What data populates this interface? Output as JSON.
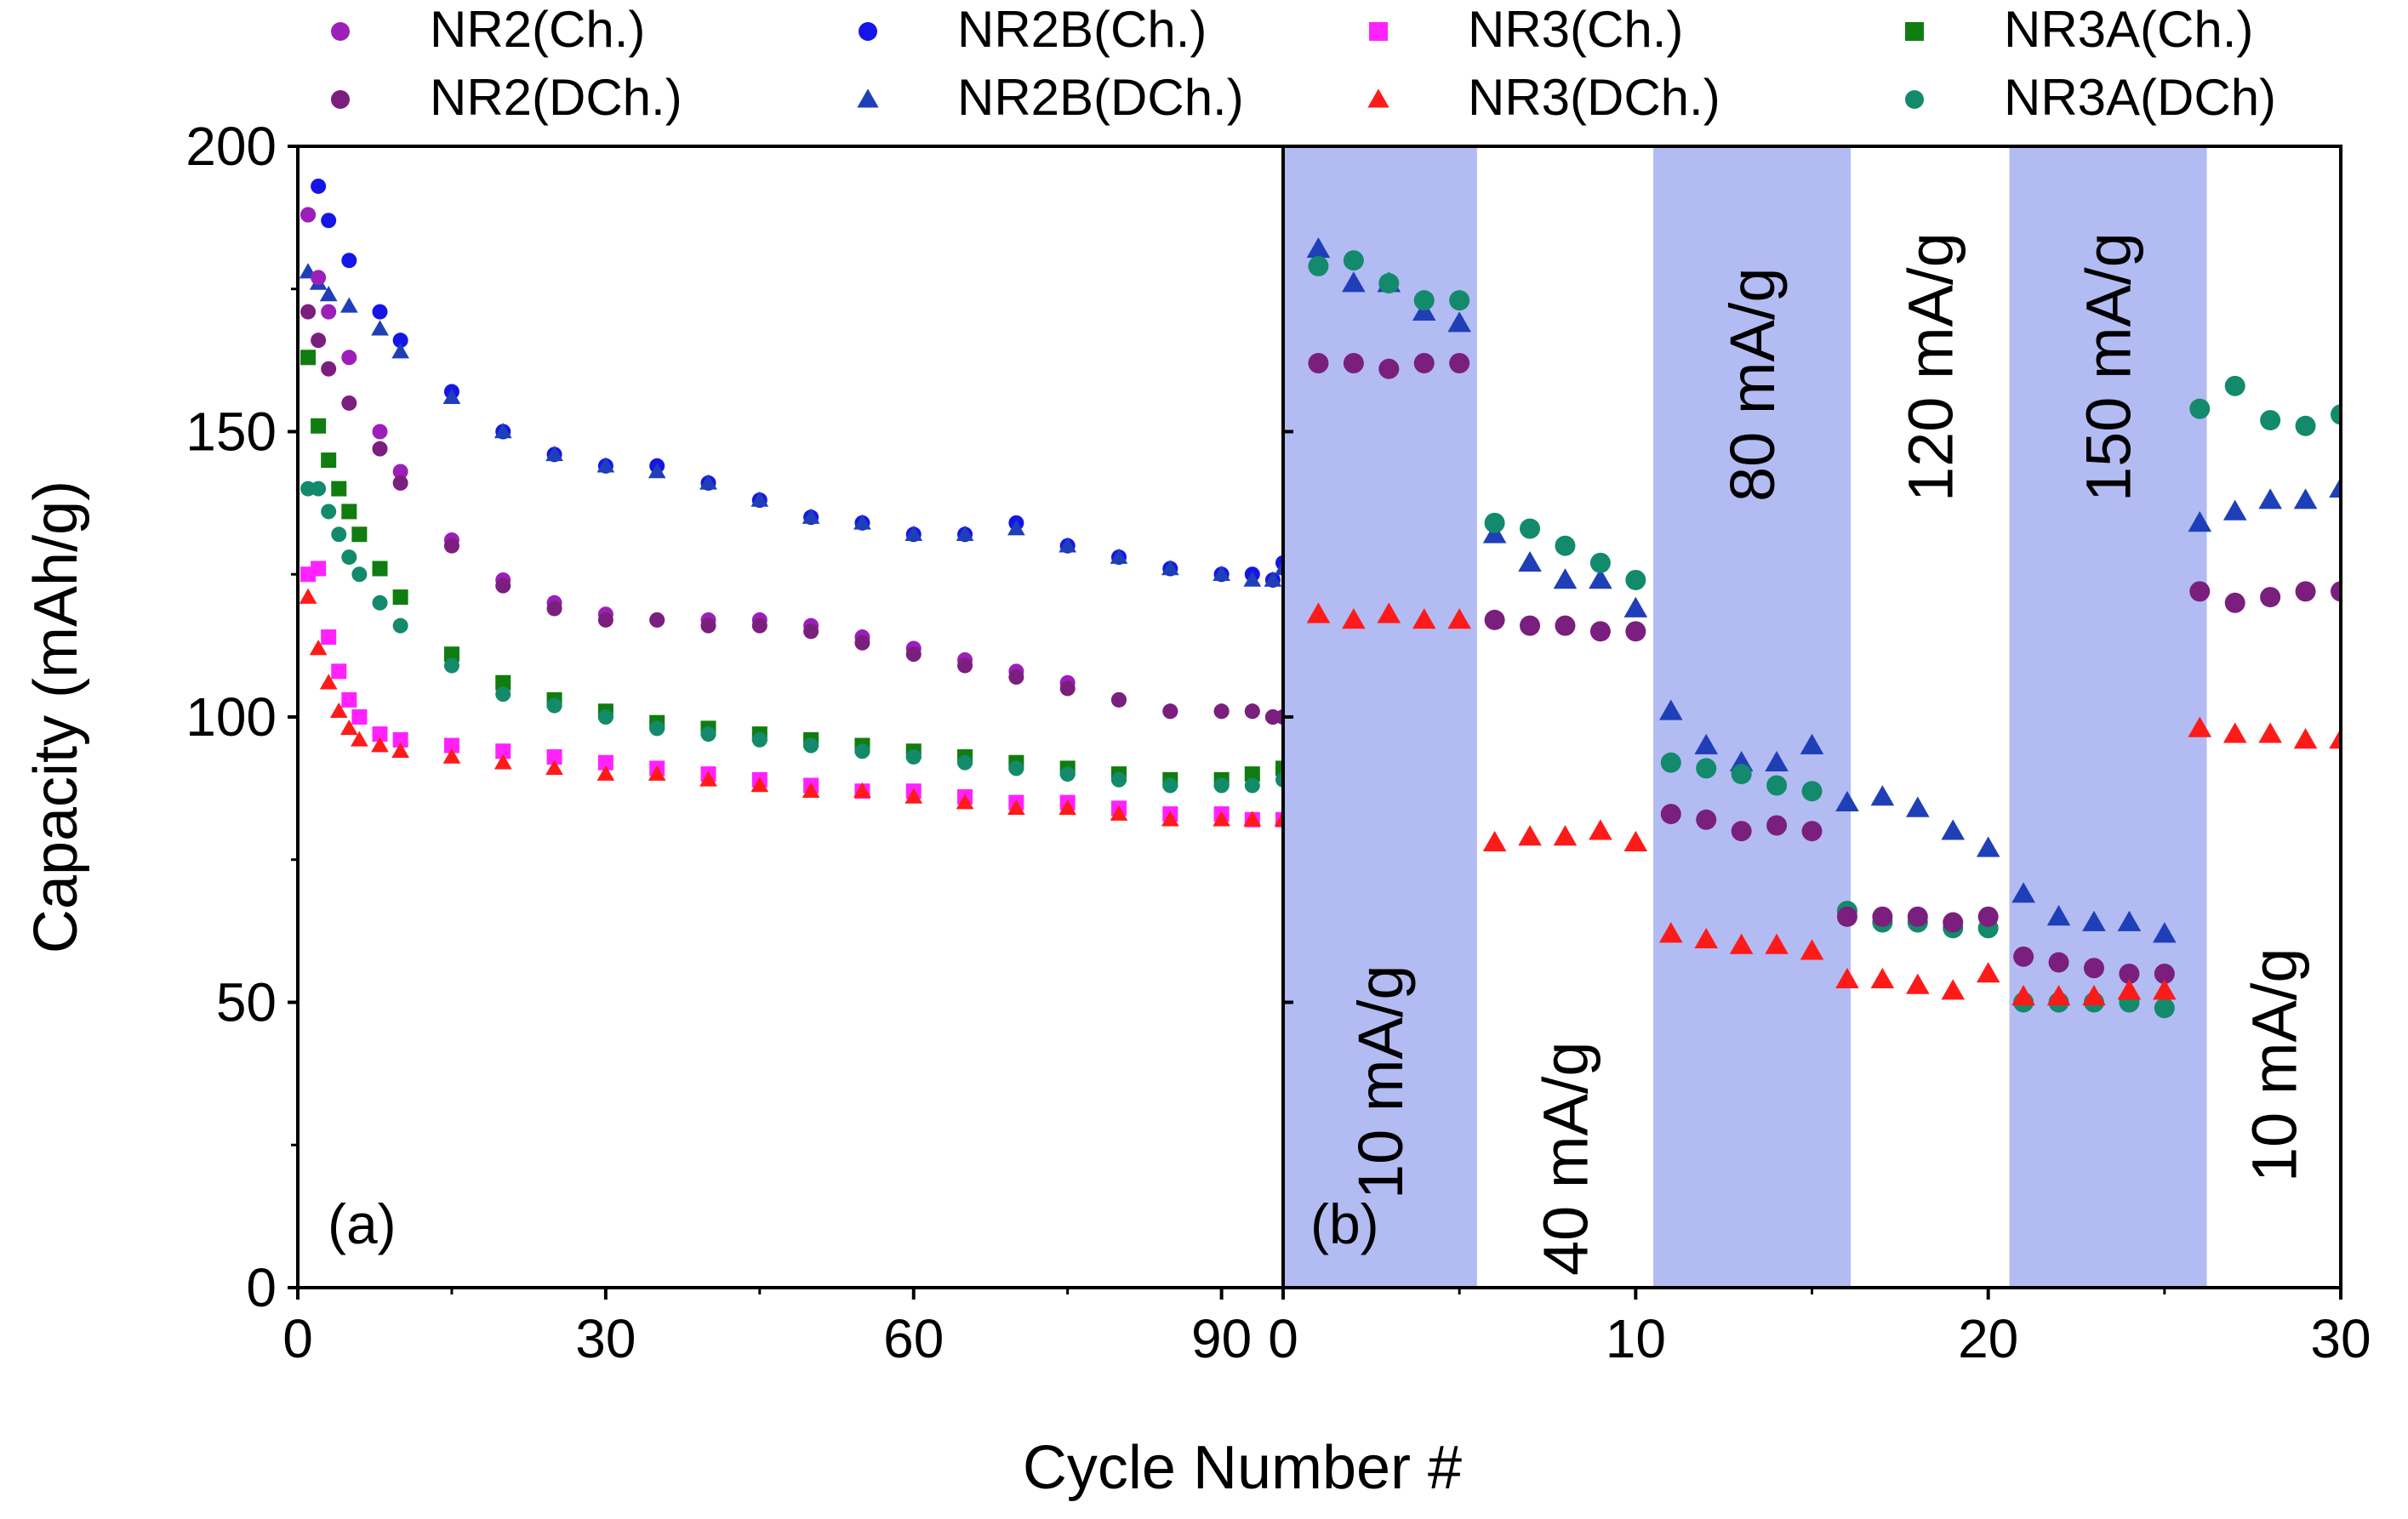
{
  "chart_data": {
    "type": "scatter",
    "ylabel": "Capacity (mAh/g)",
    "xlabel": "Cycle Number #",
    "ylim": [
      0,
      200
    ],
    "yticks": [
      "0",
      "50",
      "100",
      "150",
      "200"
    ],
    "legend_placement": "top",
    "legend": [
      {
        "name": "NR2(Ch.)",
        "marker": "circle",
        "color": "#9b1fb8"
      },
      {
        "name": "NR2B(Ch.)",
        "marker": "circle",
        "color": "#1515e8"
      },
      {
        "name": "NR3(Ch.)",
        "marker": "square",
        "color": "#ff22ff"
      },
      {
        "name": "NR3A(Ch.)",
        "marker": "square",
        "color": "#0f7d0f"
      },
      {
        "name": "NR2(DCh.)",
        "marker": "circle",
        "color": "#7a1f7d"
      },
      {
        "name": "NR2B(DCh.)",
        "marker": "triangle",
        "color": "#1f3fb8"
      },
      {
        "name": "NR3(DCh.)",
        "marker": "triangle",
        "color": "#ff1a1a"
      },
      {
        "name": "NR3A(DCh)",
        "marker": "circle",
        "color": "#138a6b"
      }
    ],
    "panels": [
      {
        "id": "a",
        "label": "(a)",
        "xlim": [
          0,
          96
        ],
        "xticks": [
          "0",
          "30",
          "60",
          "90"
        ],
        "series": [
          {
            "name": "NR2B(Ch.)",
            "x": [
              1,
              2,
              3,
              5,
              8,
              10,
              15,
              20,
              25,
              30,
              35,
              40,
              45,
              50,
              55,
              60,
              65,
              70,
              75,
              80,
              85,
              90,
              93,
              95,
              96
            ],
            "y": [
              188,
              193,
              187,
              180,
              171,
              166,
              157,
              150,
              146,
              144,
              144,
              141,
              138,
              135,
              134,
              132,
              132,
              134,
              130,
              128,
              126,
              125,
              125,
              124,
              127
            ]
          },
          {
            "name": "NR2B(DCh.)",
            "x": [
              1,
              2,
              3,
              5,
              8,
              10,
              15,
              20,
              25,
              30,
              35,
              40,
              45,
              50,
              55,
              60,
              65,
              70,
              75,
              80,
              85,
              90,
              93,
              95,
              96
            ],
            "y": [
              178,
              176,
              174,
              172,
              168,
              164,
              156,
              150,
              146,
              144,
              143,
              141,
              138,
              135,
              134,
              132,
              132,
              133,
              130,
              128,
              126,
              125,
              124,
              124,
              126
            ]
          },
          {
            "name": "NR2(Ch.)",
            "x": [
              1,
              2,
              3,
              5,
              8,
              10,
              15,
              20,
              25,
              30,
              35,
              40,
              45,
              50,
              55,
              60,
              65,
              70,
              75,
              80,
              85,
              90,
              93,
              95,
              96
            ],
            "y": [
              188,
              177,
              171,
              163,
              150,
              143,
              131,
              124,
              120,
              118,
              117,
              117,
              117,
              116,
              114,
              112,
              110,
              108,
              106,
              103,
              101,
              101,
              101,
              100,
              100
            ]
          },
          {
            "name": "NR2(DCh.)",
            "x": [
              1,
              2,
              3,
              5,
              8,
              10,
              15,
              20,
              25,
              30,
              35,
              40,
              45,
              50,
              55,
              60,
              65,
              70,
              75,
              80,
              85,
              90,
              93,
              95,
              96
            ],
            "y": [
              171,
              166,
              161,
              155,
              147,
              141,
              130,
              123,
              119,
              117,
              117,
              116,
              116,
              115,
              113,
              111,
              109,
              107,
              105,
              103,
              101,
              101,
              101,
              100,
              100
            ]
          },
          {
            "name": "NR3A(Ch.)",
            "x": [
              1,
              2,
              3,
              4,
              5,
              6,
              8,
              10,
              15,
              20,
              25,
              30,
              35,
              40,
              45,
              50,
              55,
              60,
              65,
              70,
              75,
              80,
              85,
              90,
              93,
              96
            ],
            "y": [
              163,
              151,
              145,
              140,
              136,
              132,
              126,
              121,
              111,
              106,
              103,
              101,
              99,
              98,
              97,
              96,
              95,
              94,
              93,
              92,
              91,
              90,
              89,
              89,
              90,
              91
            ]
          },
          {
            "name": "NR3A(DCh)",
            "x": [
              1,
              2,
              3,
              4,
              5,
              6,
              8,
              10,
              15,
              20,
              25,
              30,
              35,
              40,
              45,
              50,
              55,
              60,
              65,
              70,
              75,
              80,
              85,
              90,
              93,
              96
            ],
            "y": [
              140,
              140,
              136,
              132,
              128,
              125,
              120,
              116,
              109,
              104,
              102,
              100,
              98,
              97,
              96,
              95,
              94,
              93,
              92,
              91,
              90,
              89,
              88,
              88,
              88,
              89
            ]
          },
          {
            "name": "NR3(Ch.)",
            "x": [
              1,
              2,
              3,
              4,
              5,
              6,
              8,
              10,
              15,
              20,
              25,
              30,
              35,
              40,
              45,
              50,
              55,
              60,
              65,
              70,
              75,
              80,
              85,
              90,
              93,
              96
            ],
            "y": [
              125,
              126,
              114,
              108,
              103,
              100,
              97,
              96,
              95,
              94,
              93,
              92,
              91,
              90,
              89,
              88,
              87,
              87,
              86,
              85,
              85,
              84,
              83,
              83,
              82,
              82
            ]
          },
          {
            "name": "NR3(DCh.)",
            "x": [
              1,
              2,
              3,
              4,
              5,
              6,
              8,
              10,
              15,
              20,
              25,
              30,
              35,
              40,
              45,
              50,
              55,
              60,
              65,
              70,
              75,
              80,
              85,
              90,
              93,
              96
            ],
            "y": [
              121,
              112,
              106,
              101,
              98,
              96,
              95,
              94,
              93,
              92,
              91,
              90,
              90,
              89,
              88,
              87,
              87,
              86,
              85,
              84,
              84,
              83,
              82,
              82,
              82,
              82
            ]
          }
        ]
      },
      {
        "id": "b",
        "label": "(b)",
        "xlim": [
          0,
          30
        ],
        "xticks": [
          "0",
          "10",
          "20",
          "30"
        ],
        "rate_bands": [
          {
            "label": "10 mA/g",
            "start": 0,
            "end": 5.5,
            "shaded": true
          },
          {
            "label": "40 mA/g",
            "start": 5.5,
            "end": 10.5,
            "shaded": false
          },
          {
            "label": "80 mA/g",
            "start": 10.5,
            "end": 16.1,
            "shaded": true
          },
          {
            "label": "120 mA/g",
            "start": 16.1,
            "end": 20.6,
            "shaded": false
          },
          {
            "label": "150 mA/g",
            "start": 20.6,
            "end": 26.2,
            "shaded": true
          },
          {
            "label": "10 mA/g",
            "start": 26.2,
            "end": 30,
            "shaded": false
          }
        ],
        "series": [
          {
            "name": "NR2B(DCh.)",
            "x": [
              1,
              2,
              3,
              4,
              5,
              6,
              7,
              8,
              9,
              10,
              11,
              12,
              13,
              14,
              15,
              16,
              17,
              18,
              19,
              20,
              21,
              22,
              23,
              24,
              25,
              26,
              27,
              28,
              29,
              30
            ],
            "y": [
              182,
              176,
              176,
              171,
              169,
              132,
              127,
              124,
              124,
              119,
              101,
              95,
              92,
              92,
              95,
              85,
              86,
              84,
              80,
              77,
              69,
              65,
              64,
              64,
              62,
              134,
              136,
              138,
              138,
              140
            ]
          },
          {
            "name": "NR3A(DCh)",
            "x": [
              1,
              2,
              3,
              4,
              5,
              6,
              7,
              8,
              9,
              10,
              11,
              12,
              13,
              14,
              15,
              16,
              17,
              18,
              19,
              20,
              21,
              22,
              23,
              24,
              25,
              26,
              27,
              28,
              29,
              30
            ],
            "y": [
              179,
              180,
              176,
              173,
              173,
              134,
              133,
              130,
              127,
              124,
              92,
              91,
              90,
              88,
              87,
              66,
              64,
              64,
              63,
              63,
              50,
              50,
              50,
              50,
              49,
              154,
              158,
              152,
              151,
              153
            ]
          },
          {
            "name": "NR2(DCh.)",
            "x": [
              1,
              2,
              3,
              4,
              5,
              6,
              7,
              8,
              9,
              10,
              11,
              12,
              13,
              14,
              15,
              16,
              17,
              18,
              19,
              20,
              21,
              22,
              23,
              24,
              25,
              26,
              27,
              28,
              29,
              30
            ],
            "y": [
              162,
              162,
              161,
              162,
              162,
              117,
              116,
              116,
              115,
              115,
              83,
              82,
              80,
              81,
              80,
              65,
              65,
              65,
              64,
              65,
              58,
              57,
              56,
              55,
              55,
              122,
              120,
              121,
              122,
              122
            ]
          },
          {
            "name": "NR3(DCh.)",
            "x": [
              1,
              2,
              3,
              4,
              5,
              6,
              7,
              8,
              9,
              10,
              11,
              12,
              13,
              14,
              15,
              16,
              17,
              18,
              19,
              20,
              21,
              22,
              23,
              24,
              25,
              26,
              27,
              28,
              29,
              30
            ],
            "y": [
              118,
              117,
              118,
              117,
              117,
              78,
              79,
              79,
              80,
              78,
              62,
              61,
              60,
              60,
              59,
              54,
              54,
              53,
              52,
              55,
              51,
              51,
              51,
              52,
              52,
              98,
              97,
              97,
              96,
              96
            ]
          }
        ]
      }
    ]
  }
}
